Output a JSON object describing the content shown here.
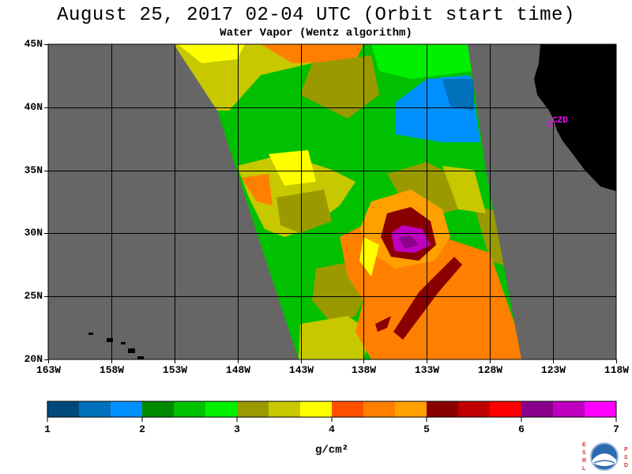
{
  "header": {
    "title": "August 25, 2017  02-04 UTC  (Orbit start time)",
    "subtitle": "Water Vapor (Wentz algorithm)"
  },
  "map": {
    "lat_labels": [
      "45N",
      "40N",
      "35N",
      "30N",
      "25N",
      "20N"
    ],
    "lat_values": [
      45,
      40,
      35,
      30,
      25,
      20
    ],
    "lon_labels": [
      "163W",
      "158W",
      "153W",
      "148W",
      "143W",
      "138W",
      "133W",
      "128W",
      "123W",
      "118W"
    ],
    "lon_values": [
      -163,
      -158,
      -153,
      -148,
      -143,
      -138,
      -133,
      -128,
      -123,
      -118
    ],
    "lon_range": [
      -163,
      -118
    ],
    "lat_range": [
      20,
      45
    ],
    "station_label": "CZD",
    "colors": {
      "nodata": "#666666",
      "land": "#000000",
      "grid": "#000000",
      "station": "#ff00ff"
    }
  },
  "colorbar": {
    "tick_labels": [
      "1",
      "2",
      "3",
      "4",
      "5",
      "6",
      "7"
    ],
    "range": [
      1,
      7
    ],
    "unit": "g/cm²",
    "colors": [
      "#004a7a",
      "#0070bb",
      "#0090ff",
      "#008a00",
      "#00c000",
      "#00f000",
      "#9a9a00",
      "#c8c800",
      "#ffff00",
      "#ff5000",
      "#ff8000",
      "#ffa000",
      "#8a0000",
      "#c00000",
      "#ff0000",
      "#8a008a",
      "#c000c0",
      "#ff00ff"
    ]
  },
  "logo": {
    "left_letters": [
      "E",
      "S",
      "R",
      "L"
    ],
    "right_letters": [
      "P",
      "S",
      "D"
    ],
    "center_text": "NOAA"
  }
}
